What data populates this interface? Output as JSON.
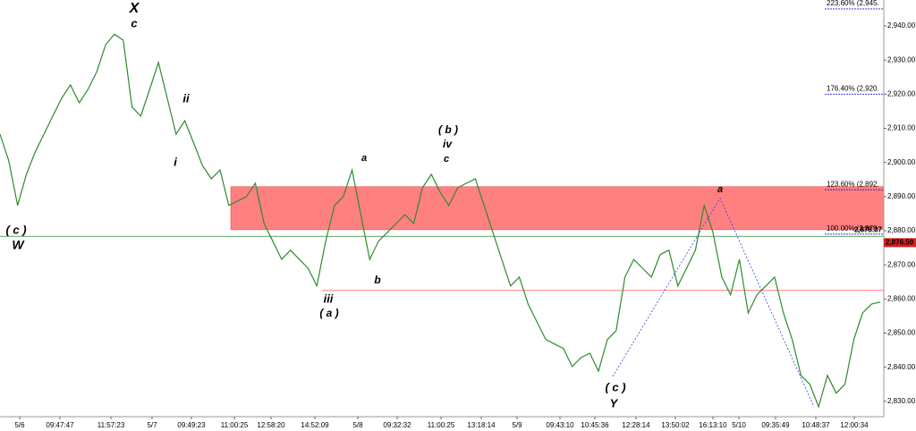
{
  "chart_data": {
    "type": "line",
    "x_tick_labels": [
      "5/6",
      "09:47:47",
      "11:57:23",
      "5/7",
      "09:49:23",
      "11:00:25",
      "12:58:20",
      "14:52:09",
      "5/8",
      "09:32:32",
      "11:00:25",
      "13:18:14",
      "5/9",
      "09:43:10",
      "10:45:36",
      "12:28:14",
      "13:50:02",
      "16:13:10",
      "5/10",
      "09:35:49",
      "10:48:37",
      "12:00:34"
    ],
    "series": [
      {
        "color": "#2e8b2e",
        "values": [
          2908.3,
          2900.5,
          2887.4,
          2896.5,
          2903.1,
          2908.3,
          2913.6,
          2918.8,
          2922.7,
          2917.5,
          2921.4,
          2926.6,
          2934.5,
          2937.6,
          2935.8,
          2916.2,
          2913.6,
          2921.4,
          2929.3,
          2918.8,
          2908.3,
          2912.2,
          2905.7,
          2899.1,
          2895.2,
          2897.8,
          2887.4,
          2888.7,
          2890.0,
          2893.9,
          2882.1,
          2876.9,
          2871.6,
          2874.3,
          2871.6,
          2869.0,
          2863.8,
          2876.9,
          2887.4,
          2890.0,
          2897.8,
          2884.7,
          2871.6,
          2876.9,
          2879.5,
          2882.1,
          2884.7,
          2882.1,
          2892.6,
          2896.5,
          2891.3,
          2887.4,
          2892.6,
          2893.9,
          2895.2,
          2887.4,
          2879.5,
          2871.6,
          2863.8,
          2866.4,
          2858.5,
          2853.3,
          2848.1,
          2846.8,
          2845.5,
          2840.2,
          2842.8,
          2844.1,
          2838.9,
          2848.1,
          2850.7,
          2866.4,
          2871.6,
          2869.0,
          2866.4,
          2873.0,
          2874.3,
          2863.8,
          2869.0,
          2874.3,
          2887.4,
          2879.5,
          2866.4,
          2861.2,
          2871.6,
          2855.9,
          2861.2,
          2863.8,
          2866.4,
          2855.9,
          2848.1,
          2837.6,
          2835.0,
          2828.4,
          2837.6,
          2832.4,
          2835.0,
          2848.1,
          2855.9,
          2858.5,
          2859.1
        ]
      }
    ],
    "ylim": [
      2825.5,
      2947.6
    ],
    "yticks": [
      {
        "value": 2830,
        "label": "2,830.00"
      },
      {
        "value": 2840,
        "label": "2,840.00"
      },
      {
        "value": 2850,
        "label": "2,850.00"
      },
      {
        "value": 2860,
        "label": "2,860.00"
      },
      {
        "value": 2870,
        "label": "2,870.00"
      },
      {
        "value": 2880,
        "label": "2,880.00"
      },
      {
        "value": 2890,
        "label": "2,890.00"
      },
      {
        "value": 2900,
        "label": "2,900.00"
      },
      {
        "value": 2910,
        "label": "2,910.00"
      },
      {
        "value": 2920,
        "label": "2,920.00"
      },
      {
        "value": 2930,
        "label": "2,930.00"
      },
      {
        "value": 2940,
        "label": "2,940.00"
      }
    ],
    "zone": {
      "color": "#ff8080",
      "range": [
        2880.3,
        2892.9
      ]
    },
    "levels": [
      {
        "value": 2878.37,
        "color": "#2e8b2e"
      },
      {
        "value": 2862.5,
        "color": "#ff6666"
      }
    ],
    "price_labels": [
      {
        "value": 2878.37,
        "label": "2,878.37",
        "color": "#2e8b2e"
      },
      {
        "value": 2876.5,
        "label": "2,876.50",
        "color": "#d62020"
      }
    ],
    "fib_levels": [
      {
        "value": 2945,
        "label": "223.60% (2,945."
      },
      {
        "value": 2920,
        "label": "176.40% (2,920."
      },
      {
        "value": 2892,
        "label": "123.60% (2,892."
      },
      {
        "value": 2879,
        "label": "100.00% (2,879"
      }
    ],
    "fib_color": "#1c1cd8",
    "wave_line": {
      "color": "#3a3ae0",
      "values": [
        2837.3,
        2889.5,
        2828.4
      ]
    },
    "annotations": [
      {
        "text": "X",
        "color": "#d62020"
      },
      {
        "text": "c",
        "color": "#000000"
      },
      {
        "text": "( c )",
        "color": "#d62020"
      },
      {
        "text": "W",
        "color": "#d62020"
      },
      {
        "text": "ii",
        "color": "#1c1cd8"
      },
      {
        "text": "i",
        "color": "#1c1cd8"
      },
      {
        "text": "iii",
        "color": "#10108a"
      },
      {
        "text": "( a )",
        "color": "#d62020"
      },
      {
        "text": "a",
        "color": "#1c1cd8"
      },
      {
        "text": "b",
        "color": "#1c1cd8"
      },
      {
        "text": "( b )",
        "color": "#d62020"
      },
      {
        "text": "iv",
        "color": "#1c1cd8"
      },
      {
        "text": "c",
        "color": "#1c1cd8"
      },
      {
        "text": "a",
        "color": "#1c1cd8"
      },
      {
        "text": "( c )",
        "color": "#d62020"
      },
      {
        "text": "Y",
        "color": "#d62020"
      }
    ]
  }
}
